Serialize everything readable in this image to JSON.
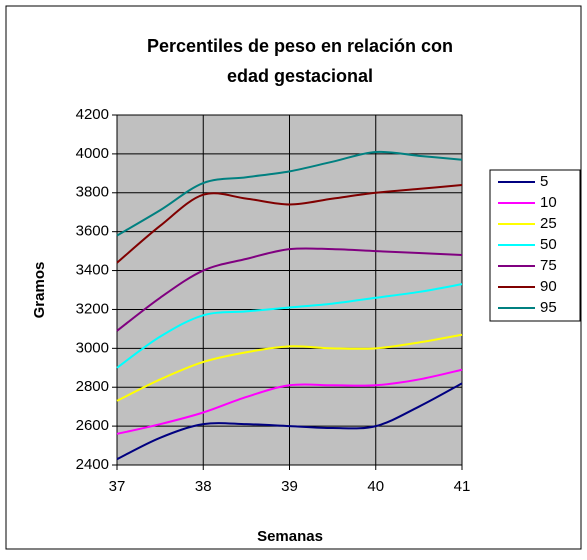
{
  "chart_data": {
    "type": "line",
    "title": "Percentiles de peso en relación con edad gestacional",
    "x_label": "Semanas",
    "y_label": "Gramos",
    "x": [
      37,
      37.5,
      38,
      38.5,
      39,
      39.5,
      40,
      40.5,
      41
    ],
    "series": [
      {
        "name": "5",
        "color": "#000080",
        "values": [
          2430,
          2540,
          2610,
          2610,
          2600,
          2590,
          2600,
          2700,
          2820
        ]
      },
      {
        "name": "10",
        "color": "#ff00ff",
        "values": [
          2560,
          2610,
          2670,
          2750,
          2810,
          2810,
          2810,
          2840,
          2890
        ]
      },
      {
        "name": "25",
        "color": "#ffff00",
        "values": [
          2730,
          2840,
          2930,
          2980,
          3010,
          3000,
          3000,
          3030,
          3070
        ]
      },
      {
        "name": "50",
        "color": "#00ffff",
        "values": [
          2900,
          3060,
          3170,
          3190,
          3210,
          3230,
          3260,
          3290,
          3330
        ]
      },
      {
        "name": "75",
        "color": "#800080",
        "values": [
          3090,
          3260,
          3400,
          3460,
          3510,
          3510,
          3500,
          3490,
          3480
        ]
      },
      {
        "name": "90",
        "color": "#800000",
        "values": [
          3440,
          3630,
          3790,
          3770,
          3740,
          3770,
          3800,
          3820,
          3840
        ]
      },
      {
        "name": "95",
        "color": "#008080",
        "values": [
          3580,
          3710,
          3850,
          3880,
          3910,
          3960,
          4010,
          3990,
          3970
        ]
      }
    ],
    "xlim": [
      37,
      41
    ],
    "xticks": [
      37,
      38,
      39,
      40,
      41
    ],
    "ylim": [
      2400,
      4200
    ],
    "yticks": [
      2400,
      2600,
      2800,
      3000,
      3200,
      3400,
      3600,
      3800,
      4000,
      4200
    ],
    "grid": true,
    "smooth": true,
    "legend": "right"
  }
}
